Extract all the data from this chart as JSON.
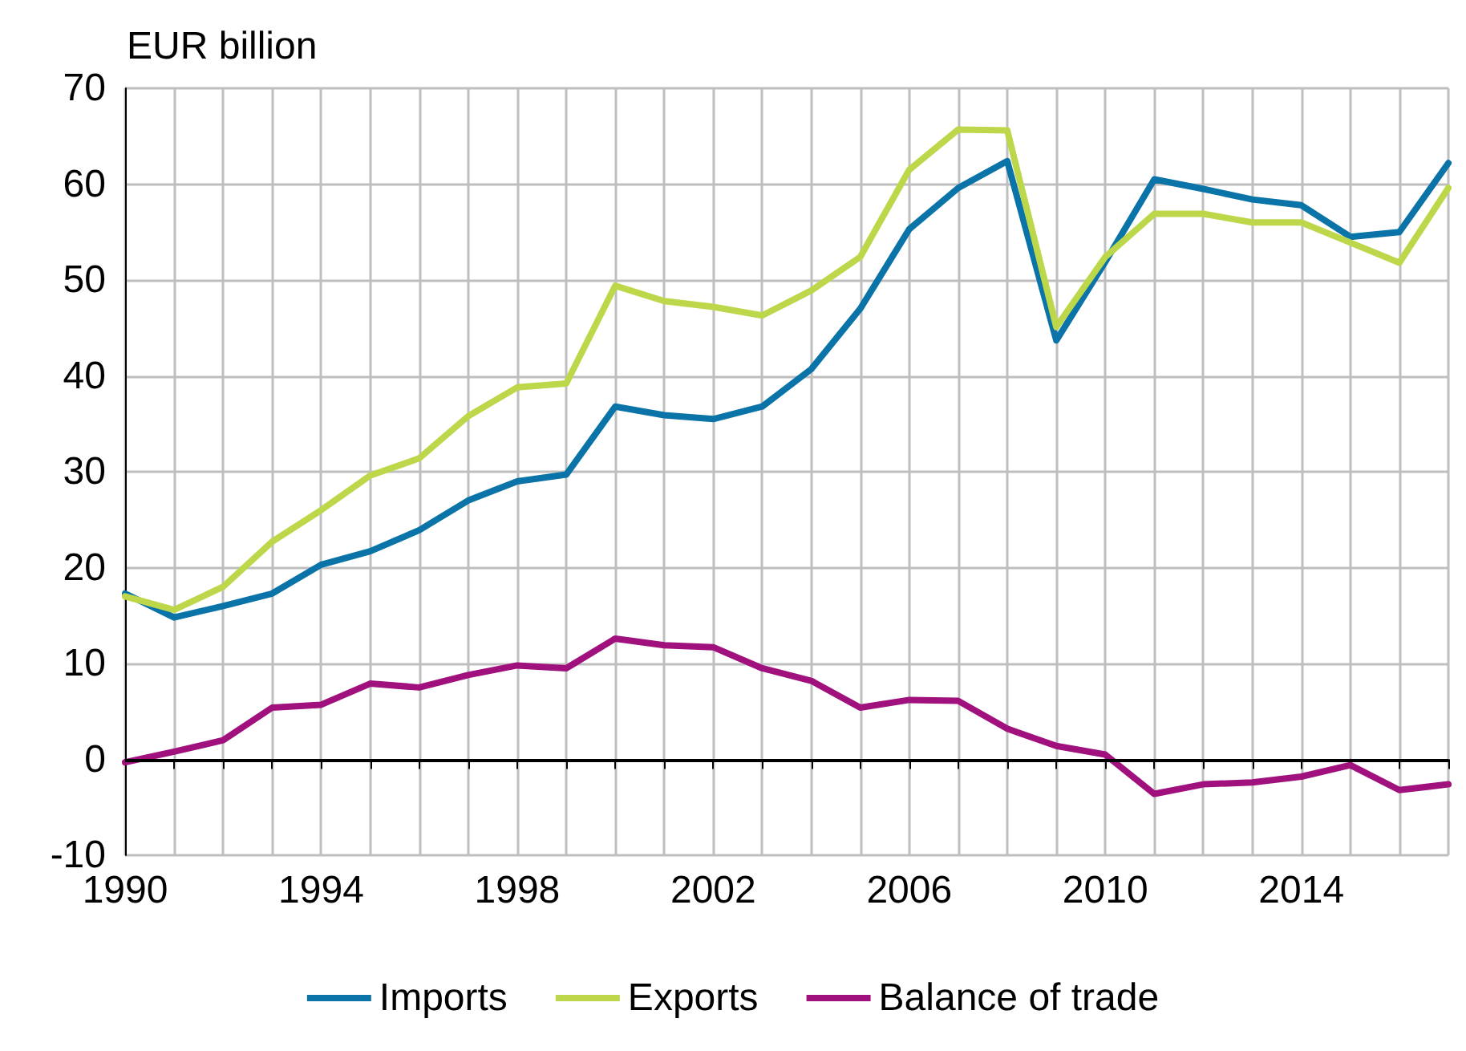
{
  "chart_data": {
    "type": "line",
    "ylabel": "EUR billion",
    "x": [
      1990,
      1991,
      1992,
      1993,
      1994,
      1995,
      1996,
      1997,
      1998,
      1999,
      2000,
      2001,
      2002,
      2003,
      2004,
      2005,
      2006,
      2007,
      2008,
      2009,
      2010,
      2011,
      2012,
      2013,
      2014,
      2015,
      2016,
      2017
    ],
    "series": [
      {
        "name": "Imports",
        "color": "#0a73a8",
        "values": [
          17.3,
          14.8,
          16.0,
          17.3,
          20.3,
          21.7,
          23.9,
          27.0,
          29.0,
          29.7,
          36.8,
          35.9,
          35.5,
          36.8,
          40.7,
          47.0,
          55.3,
          59.6,
          62.4,
          43.7,
          51.9,
          60.5,
          59.5,
          58.4,
          57.8,
          54.5,
          55.0,
          62.2
        ]
      },
      {
        "name": "Exports",
        "color": "#bcd84a",
        "values": [
          17.0,
          15.6,
          18.0,
          22.7,
          26.0,
          29.6,
          31.4,
          35.8,
          38.8,
          39.2,
          49.4,
          47.8,
          47.2,
          46.3,
          48.9,
          52.4,
          61.5,
          65.7,
          65.6,
          45.1,
          52.4,
          56.9,
          56.9,
          56.0,
          56.0,
          53.9,
          51.8,
          59.6
        ]
      },
      {
        "name": "Balance of trade",
        "color": "#a0117e",
        "values": [
          -0.3,
          0.8,
          2.0,
          5.4,
          5.7,
          7.9,
          7.5,
          8.8,
          9.8,
          9.5,
          12.6,
          11.9,
          11.7,
          9.5,
          8.2,
          5.4,
          6.2,
          6.1,
          3.2,
          1.4,
          0.5,
          -3.6,
          -2.6,
          -2.4,
          -1.8,
          -0.6,
          -3.2,
          -2.6
        ]
      }
    ],
    "xlim": [
      1990,
      2017
    ],
    "xticks": [
      1990,
      {
        "value": 1991,
        "label": null
      },
      {
        "value": 1992,
        "label": null
      },
      {
        "value": 1993,
        "label": null
      },
      1994,
      {
        "value": 1995,
        "label": null
      },
      {
        "value": 1996,
        "label": null
      },
      {
        "value": 1997,
        "label": null
      },
      1998,
      {
        "value": 1999,
        "label": null
      },
      {
        "value": 2000,
        "label": null
      },
      {
        "value": 2001,
        "label": null
      },
      2002,
      {
        "value": 2003,
        "label": null
      },
      {
        "value": 2004,
        "label": null
      },
      {
        "value": 2005,
        "label": null
      },
      2006,
      {
        "value": 2007,
        "label": null
      },
      {
        "value": 2008,
        "label": null
      },
      {
        "value": 2009,
        "label": null
      },
      2010,
      {
        "value": 2011,
        "label": null
      },
      {
        "value": 2012,
        "label": null
      },
      {
        "value": 2013,
        "label": null
      },
      2014,
      {
        "value": 2015,
        "label": null
      },
      {
        "value": 2016,
        "label": null
      },
      {
        "value": 2017,
        "label": null
      }
    ],
    "ylim": [
      -10,
      70
    ],
    "yticks": [
      -10,
      0,
      10,
      20,
      30,
      40,
      50,
      60,
      70
    ],
    "ref_lines": [
      {
        "axis": "y",
        "value": 0,
        "color": "#000000"
      }
    ],
    "grid": true,
    "legend": "bottom",
    "marker": "none",
    "line_style": "solid"
  }
}
